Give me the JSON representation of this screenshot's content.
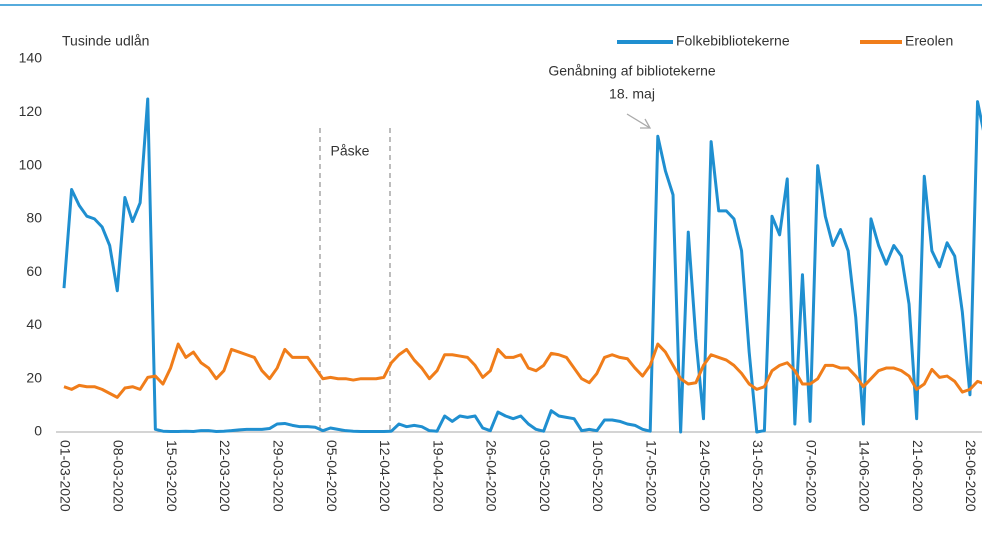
{
  "chart_data": {
    "type": "line",
    "y_label": "Tusinde udlån",
    "annotations": [
      {
        "text": [
          "Genåbning af bibliotekerne",
          "18. maj"
        ]
      },
      {
        "text": "Påske"
      }
    ],
    "categories": [
      "01-03-2020",
      null,
      null,
      null,
      null,
      null,
      null,
      "08-03-2020",
      null,
      null,
      null,
      null,
      null,
      null,
      "15-03-2020",
      null,
      null,
      null,
      null,
      null,
      null,
      "22-03-2020",
      null,
      null,
      null,
      null,
      null,
      null,
      "29-03-2020",
      null,
      null,
      null,
      null,
      null,
      null,
      "05-04-2020",
      null,
      null,
      null,
      null,
      null,
      null,
      "12-04-2020",
      null,
      null,
      null,
      null,
      null,
      null,
      "19-04-2020",
      null,
      null,
      null,
      null,
      null,
      null,
      "26-04-2020",
      null,
      null,
      null,
      null,
      null,
      null,
      "03-05-2020",
      null,
      null,
      null,
      null,
      null,
      null,
      "10-05-2020",
      null,
      null,
      null,
      null,
      null,
      null,
      "17-05-2020",
      null,
      null,
      null,
      null,
      null,
      null,
      "24-05-2020",
      null,
      null,
      null,
      null,
      null,
      null,
      "31-05-2020",
      null,
      null,
      null,
      null,
      null,
      null,
      "07-06-2020",
      null,
      null,
      null,
      null,
      null,
      null,
      "14-06-2020",
      null,
      null,
      null,
      null,
      null,
      null,
      "21-06-2020",
      null,
      null,
      null,
      null,
      null,
      null,
      "28-06-2020",
      null,
      null
    ],
    "series": [
      {
        "name": "Folkebibliotekerne",
        "color": "#1f8fd0",
        "values": [
          54,
          91,
          85,
          81,
          80,
          77,
          70,
          53,
          88,
          79,
          86,
          125,
          1,
          0.3,
          0.2,
          0.2,
          0.3,
          0.2,
          0.5,
          0.5,
          0.2,
          0.3,
          0.5,
          0.8,
          1,
          1,
          1,
          1.3,
          3,
          3.2,
          2.5,
          2,
          2,
          1.8,
          0.5,
          1.5,
          1,
          0.5,
          0.3,
          0.2,
          0.2,
          0.2,
          0.2,
          0.3,
          3,
          2,
          2.5,
          2,
          0.5,
          0.3,
          6,
          4,
          6,
          5.5,
          6,
          1.5,
          0.5,
          7.5,
          6,
          5,
          6,
          3,
          1,
          0.3,
          8,
          6,
          5.5,
          5,
          0.5,
          1,
          0.5,
          4.5,
          4.5,
          4,
          3,
          2.5,
          1,
          0.3,
          111,
          98,
          89,
          0,
          75,
          35,
          5,
          109,
          83,
          83,
          80,
          68,
          30,
          0,
          0.5,
          81,
          74,
          95,
          3,
          59,
          4,
          100,
          81,
          70,
          76,
          68,
          43,
          3,
          80,
          70,
          63,
          70,
          66,
          48,
          5,
          96,
          68,
          62,
          71,
          66,
          45,
          14,
          124,
          110
        ]
      },
      {
        "name": "Ereolen",
        "color": "#f07d1a",
        "values": [
          17,
          16,
          17.5,
          17,
          17,
          16,
          14.5,
          13,
          16.5,
          17,
          16,
          20.5,
          21,
          18,
          24,
          33,
          28,
          30,
          26,
          24,
          20,
          23,
          31,
          30,
          29,
          28,
          23,
          20,
          24,
          31,
          28,
          28,
          28,
          24,
          20,
          20.5,
          20,
          20,
          19.5,
          20,
          20,
          20,
          20.5,
          26,
          29,
          31,
          27,
          24,
          20,
          23,
          29,
          29,
          28.5,
          28,
          25,
          20.5,
          23,
          31,
          28,
          28,
          29,
          24,
          23,
          25,
          29.5,
          29,
          28,
          24,
          20,
          18.5,
          22,
          28,
          29,
          28,
          27.5,
          24,
          21,
          25,
          33,
          30,
          25,
          20,
          18,
          18.5,
          25,
          29,
          28,
          27,
          25,
          22,
          18,
          16,
          17,
          23,
          25,
          26,
          23,
          18,
          18,
          20,
          25,
          25,
          24,
          24,
          21,
          17,
          20,
          23,
          24,
          24,
          23,
          21,
          16,
          18,
          23.5,
          20.5,
          21,
          19,
          15,
          16,
          19,
          18
        ]
      }
    ],
    "ylim": [
      0,
      140
    ],
    "yticks": [
      0,
      20,
      40,
      60,
      80,
      100,
      120,
      140
    ],
    "legend": "top-right"
  }
}
